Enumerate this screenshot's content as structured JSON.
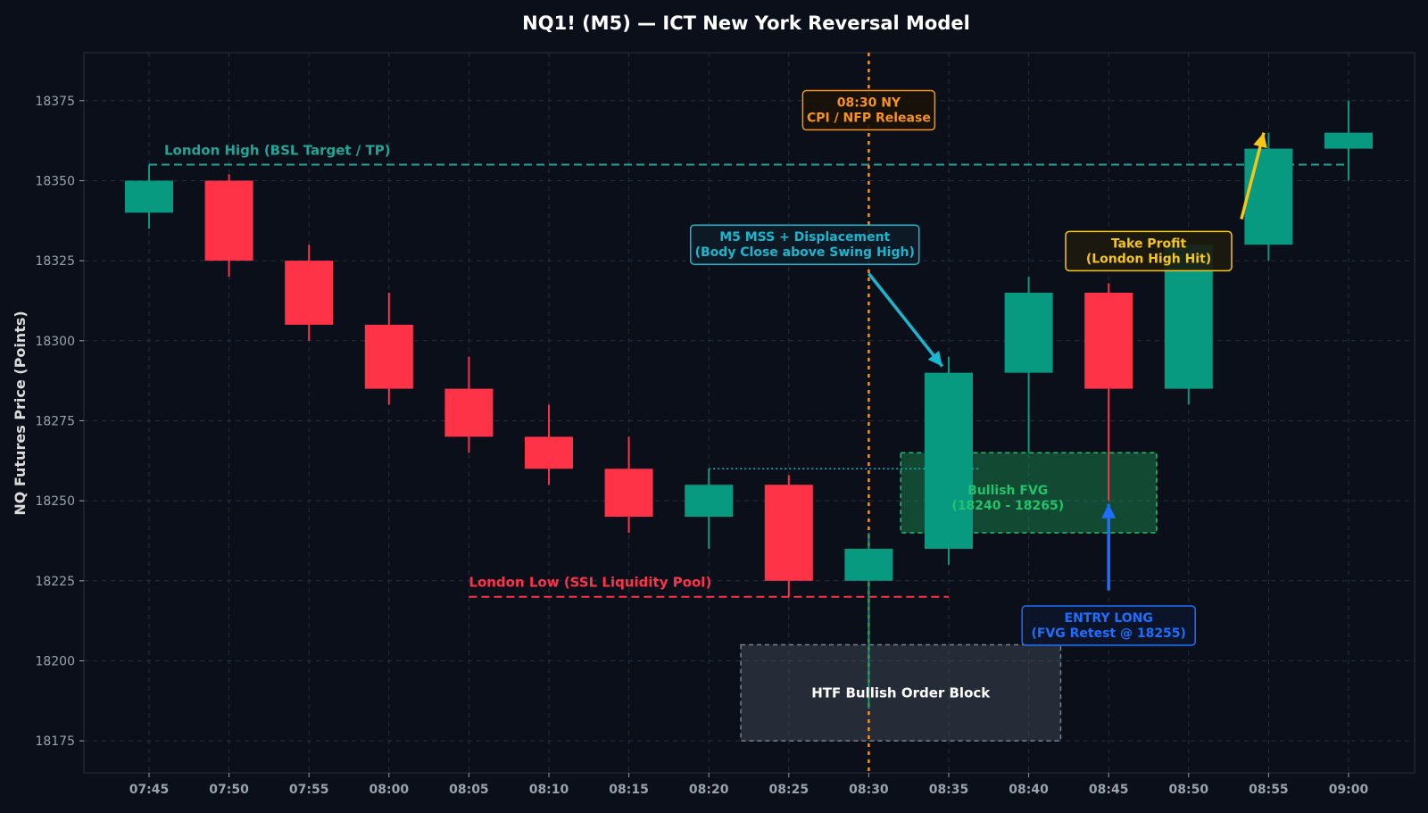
{
  "colors": {
    "background": "#0b0f19",
    "plot_bg": "#0a0f1a",
    "bull": "#089981",
    "bear": "#ff3347",
    "grid": "#26303d",
    "time_line": "#f7931a",
    "london_high": "#20a596",
    "london_low": "#ff3347",
    "mss": "#19b7cf",
    "fvg": "#21c36b",
    "entry": "#1e6fff",
    "tp": "#f5c518",
    "ob_text": "#ffffff"
  },
  "chart_data": {
    "type": "candlestick",
    "title": "NQ1! (M5) — ICT New York Reversal Model",
    "xlabel": "",
    "ylabel": "NQ Futures Price (Points)",
    "ylim": [
      18165,
      18390
    ],
    "yticks": [
      18175,
      18200,
      18225,
      18250,
      18275,
      18300,
      18325,
      18350,
      18375
    ],
    "grid": true,
    "categories": [
      "07:45",
      "07:50",
      "07:55",
      "08:00",
      "08:05",
      "08:10",
      "08:15",
      "08:20",
      "08:25",
      "08:30",
      "08:35",
      "08:40",
      "08:45",
      "08:50",
      "08:55",
      "09:00"
    ],
    "candles": [
      {
        "time": "07:45",
        "open": 18340,
        "high": 18355,
        "low": 18335,
        "close": 18350
      },
      {
        "time": "07:50",
        "open": 18350,
        "high": 18352,
        "low": 18320,
        "close": 18325
      },
      {
        "time": "07:55",
        "open": 18325,
        "high": 18330,
        "low": 18300,
        "close": 18305
      },
      {
        "time": "08:00",
        "open": 18305,
        "high": 18315,
        "low": 18280,
        "close": 18285
      },
      {
        "time": "08:05",
        "open": 18285,
        "high": 18295,
        "low": 18265,
        "close": 18270
      },
      {
        "time": "08:10",
        "open": 18270,
        "high": 18280,
        "low": 18255,
        "close": 18260
      },
      {
        "time": "08:15",
        "open": 18260,
        "high": 18270,
        "low": 18240,
        "close": 18245
      },
      {
        "time": "08:20",
        "open": 18245,
        "high": 18260,
        "low": 18235,
        "close": 18255
      },
      {
        "time": "08:25",
        "open": 18255,
        "high": 18258,
        "low": 18220,
        "close": 18225
      },
      {
        "time": "08:30",
        "open": 18225,
        "high": 18240,
        "low": 18185,
        "close": 18235
      },
      {
        "time": "08:35",
        "open": 18235,
        "high": 18295,
        "low": 18230,
        "close": 18290
      },
      {
        "time": "08:40",
        "open": 18290,
        "high": 18320,
        "low": 18265,
        "close": 18315
      },
      {
        "time": "08:45",
        "open": 18315,
        "high": 18318,
        "low": 18250,
        "close": 18285
      },
      {
        "time": "08:50",
        "open": 18285,
        "high": 18330,
        "low": 18280,
        "close": 18330
      },
      {
        "time": "08:55",
        "open": 18330,
        "high": 18365,
        "low": 18325,
        "close": 18360
      },
      {
        "time": "09:00",
        "open": 18360,
        "high": 18375,
        "low": 18350,
        "close": 18365
      }
    ],
    "levels": [
      {
        "label": "London High (BSL Target / TP)",
        "price": 18355,
        "from": "07:45",
        "to": "09:00",
        "color": "#20a596"
      },
      {
        "label": "London Low (SSL Liquidity Pool)",
        "price": 18220,
        "from": "08:05",
        "to": "08:35",
        "color": "#ff3347"
      }
    ],
    "swing_high_line": {
      "price": 18260,
      "from": "08:20",
      "to": "08:37"
    },
    "zones": [
      {
        "label_lines": [
          "Bullish FVG",
          "(18240 - 18265)"
        ],
        "from": "08:32",
        "to": "08:48",
        "low": 18240,
        "high": 18265,
        "color": "#21c36b"
      },
      {
        "label_lines": [
          "HTF Bullish Order Block"
        ],
        "from": "08:22",
        "to": "08:42",
        "low": 18175,
        "high": 18205,
        "color": "#4a4f5c"
      }
    ],
    "event_line": {
      "time": "08:30",
      "label_lines": [
        "08:30 NY",
        "CPI / NFP Release"
      ],
      "label_price": 18372
    },
    "annotations": [
      {
        "id": "mss",
        "lines": [
          "M5 MSS + Displacement",
          "(Body Close above Swing High)"
        ],
        "box_time": "08:26",
        "box_price": 18330,
        "arrow_from": [
          "08:30",
          18321
        ],
        "arrow_to": [
          "08:34.6",
          18292
        ],
        "color": "#19b7cf"
      },
      {
        "id": "entry",
        "lines": [
          "ENTRY LONG",
          "(FVG Retest @ 18255)"
        ],
        "box_time": "08:45",
        "box_price": 18211,
        "arrow_from": [
          "08:45",
          18222
        ],
        "arrow_to": [
          "08:45",
          18249
        ],
        "color": "#1e6fff"
      },
      {
        "id": "tp",
        "lines": [
          "Take Profit",
          "(London High Hit)"
        ],
        "box_time": "08:47.5",
        "box_price": 18328,
        "arrow_from": [
          "08:53.3",
          18338
        ],
        "arrow_to": [
          "08:54.7",
          18365
        ],
        "color": "#f5c518"
      }
    ]
  }
}
